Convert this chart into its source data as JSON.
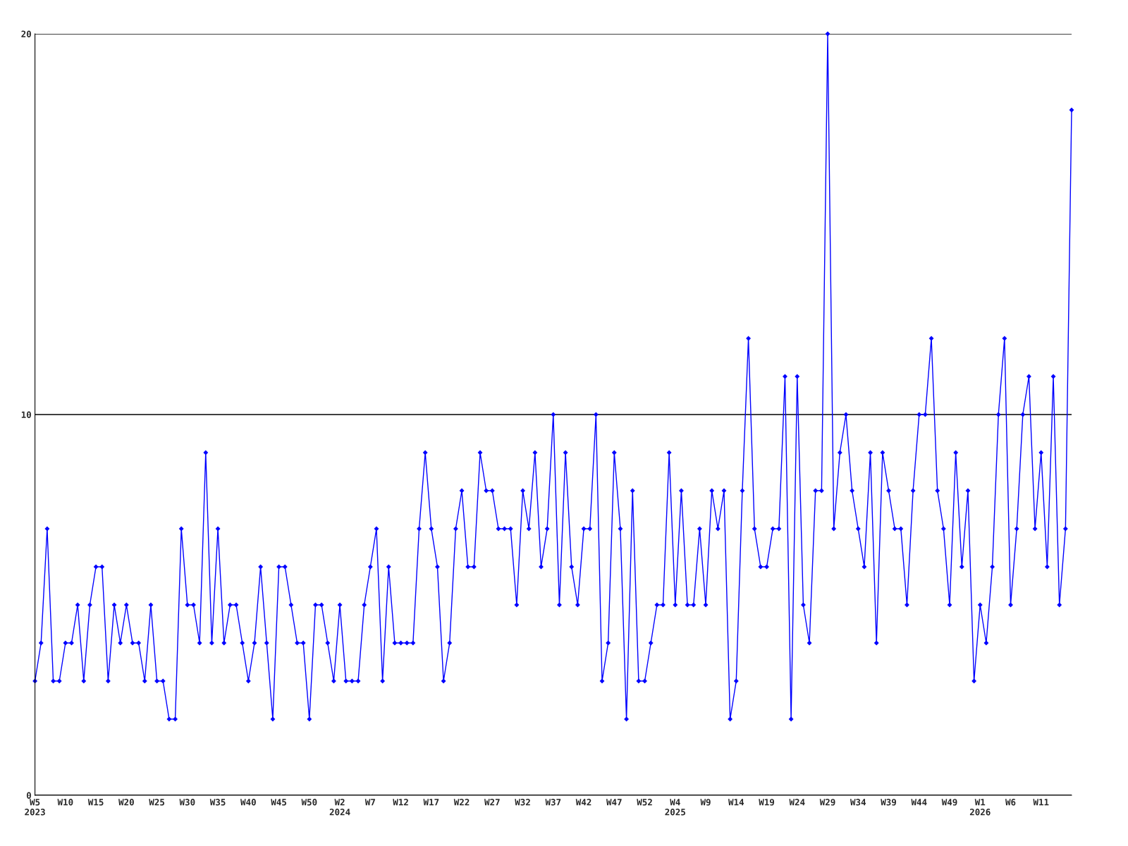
{
  "chart_data": {
    "type": "line",
    "categories": [
      "W5\n2023",
      null,
      null,
      null,
      null,
      "W10",
      null,
      null,
      null,
      null,
      "W15",
      null,
      null,
      null,
      null,
      "W20",
      null,
      null,
      null,
      null,
      "W25",
      null,
      null,
      null,
      null,
      "W30",
      null,
      null,
      null,
      null,
      "W35",
      null,
      null,
      null,
      null,
      "W40",
      null,
      null,
      null,
      null,
      "W45",
      null,
      null,
      null,
      null,
      "W50",
      null,
      null,
      null,
      null,
      "W2\n2024",
      null,
      null,
      null,
      null,
      "W7",
      null,
      null,
      null,
      null,
      "W12",
      null,
      null,
      null,
      null,
      "W17",
      null,
      null,
      null,
      null,
      "W22",
      null,
      null,
      null,
      null,
      "W27",
      null,
      null,
      null,
      null,
      "W32",
      null,
      null,
      null,
      null,
      "W37",
      null,
      null,
      null,
      null,
      "W42",
      null,
      null,
      null,
      null,
      "W47",
      null,
      null,
      null,
      null,
      "W52",
      null,
      null,
      null,
      null,
      "W4\n2025",
      null,
      null,
      null,
      null,
      "W9",
      null,
      null,
      null,
      null,
      "W14",
      null,
      null,
      null,
      null,
      "W19",
      null,
      null,
      null,
      null,
      "W24",
      null,
      null,
      null,
      null,
      "W29",
      null,
      null,
      null,
      null,
      "W34",
      null,
      null,
      null,
      null,
      "W39",
      null,
      null,
      null,
      null,
      "W44",
      null,
      null,
      null,
      null,
      "W49",
      null,
      null,
      null,
      null,
      "W1\n2026",
      null,
      null,
      null,
      null,
      "W6",
      null,
      null,
      null,
      null,
      "W11",
      null,
      null,
      null,
      null,
      null
    ],
    "series": [
      {
        "color": "#0000ff",
        "values": [
          3,
          4,
          7,
          3,
          3,
          4,
          4,
          5,
          3,
          5,
          6,
          6,
          3,
          5,
          4,
          5,
          4,
          4,
          3,
          5,
          3,
          3,
          2,
          2,
          7,
          5,
          5,
          4,
          9,
          4,
          7,
          4,
          5,
          5,
          4,
          3,
          4,
          6,
          4,
          2,
          6,
          6,
          5,
          4,
          4,
          2,
          5,
          5,
          4,
          3,
          5,
          3,
          3,
          3,
          5,
          6,
          7,
          3,
          6,
          4,
          4,
          4,
          4,
          7,
          9,
          7,
          6,
          3,
          4,
          7,
          8,
          6,
          6,
          9,
          8,
          8,
          7,
          7,
          7,
          5,
          8,
          7,
          9,
          6,
          7,
          10,
          5,
          9,
          6,
          5,
          7,
          7,
          10,
          3,
          4,
          9,
          7,
          2,
          8,
          3,
          3,
          4,
          5,
          5,
          9,
          5,
          8,
          5,
          5,
          7,
          5,
          8,
          7,
          8,
          2,
          3,
          8,
          12,
          7,
          6,
          6,
          7,
          7,
          11,
          2,
          11,
          5,
          4,
          8,
          8,
          20,
          7,
          9,
          10,
          8,
          7,
          6,
          9,
          4,
          9,
          8,
          7,
          7,
          5,
          8,
          10,
          10,
          12,
          8,
          7,
          5,
          9,
          6,
          8,
          3,
          5,
          4,
          6,
          10,
          12,
          5,
          7,
          10,
          11,
          7,
          9,
          6,
          11,
          5,
          7,
          18
        ]
      }
    ],
    "ylim": [
      0,
      20
    ],
    "yticks": [
      0,
      10,
      20
    ],
    "grid": "y",
    "marker": "diamond",
    "line_style": "solid",
    "legend": false
  }
}
